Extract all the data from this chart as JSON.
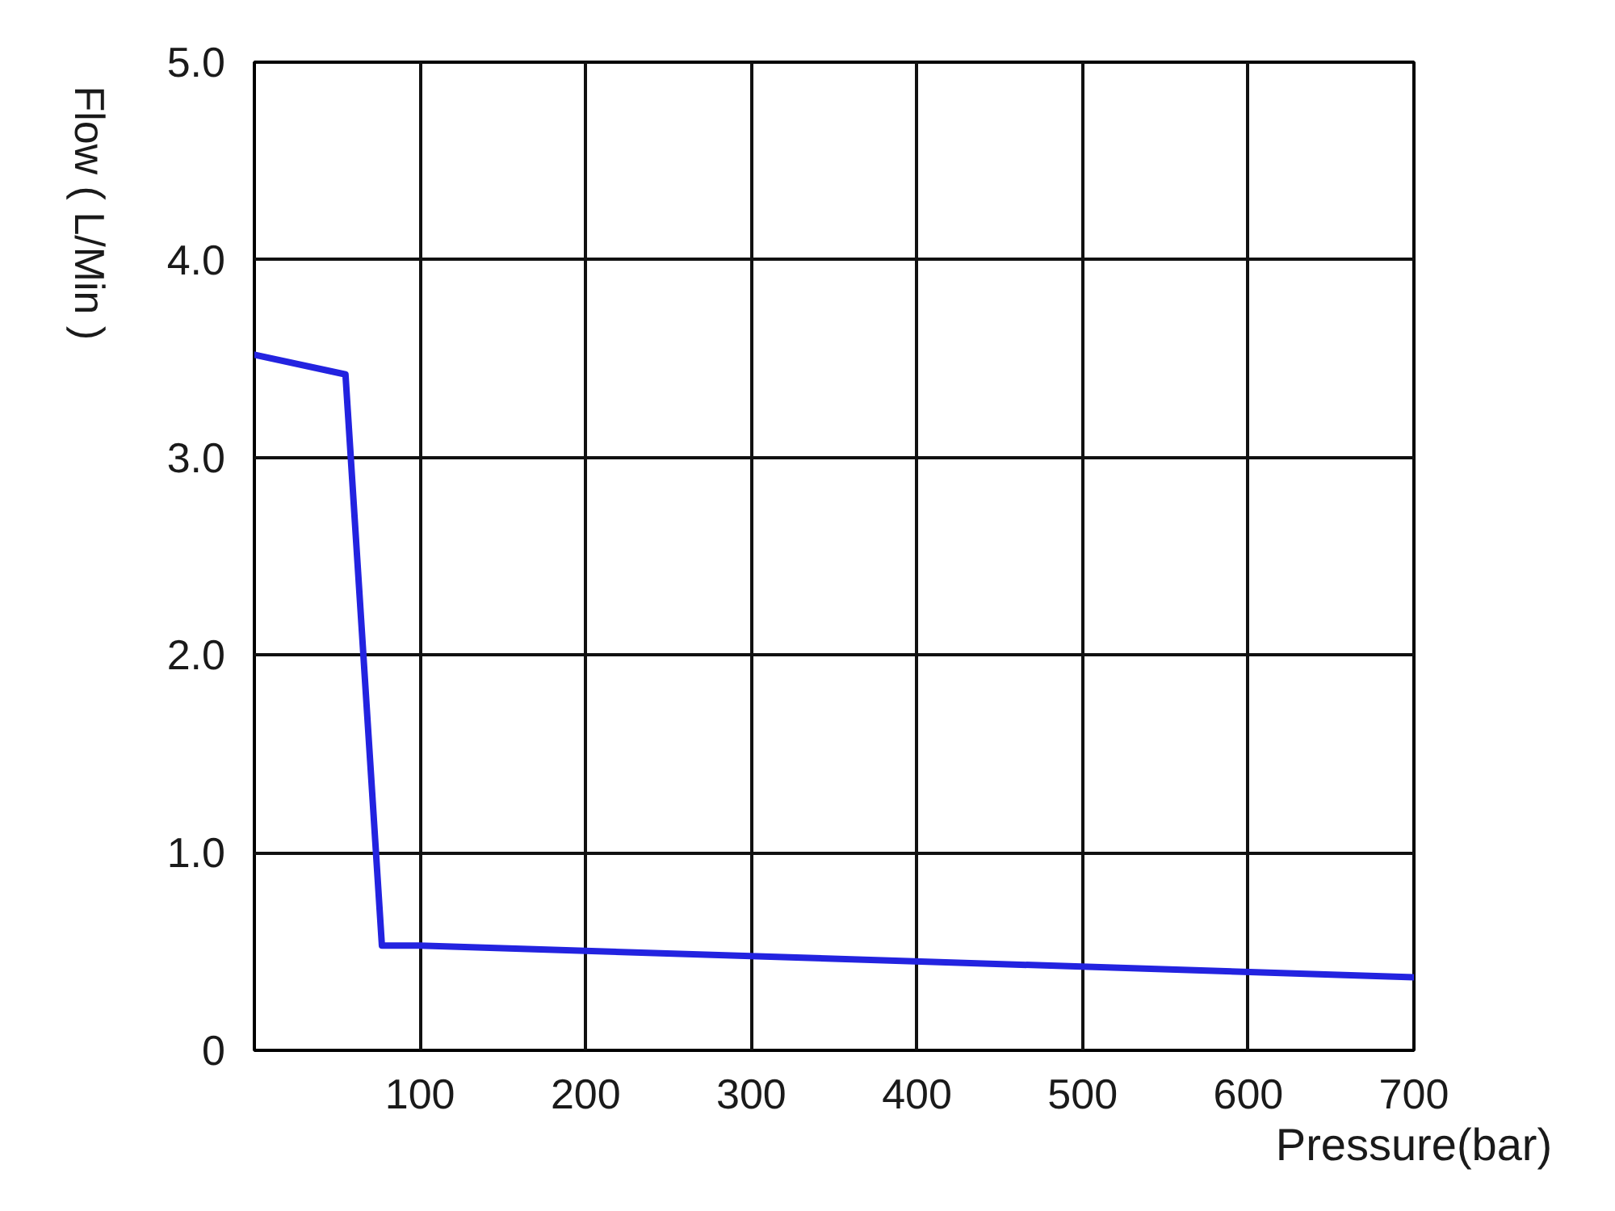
{
  "chart_data": {
    "type": "line",
    "xlabel": "Pressure(bar)",
    "ylabel": "Flow ( L/Min )",
    "x": [
      0,
      55,
      77,
      100,
      700
    ],
    "series": [
      {
        "color": "#2323e0",
        "values": [
          3.52,
          3.42,
          0.53,
          0.53,
          0.37
        ]
      }
    ],
    "xlim": [
      0,
      700
    ],
    "ylim": [
      0,
      5
    ],
    "xticks": [
      100,
      200,
      300,
      400,
      500,
      600,
      700
    ],
    "yticks": [
      {
        "value": 0,
        "label": "0"
      },
      {
        "value": 1,
        "label": "1.0"
      },
      {
        "value": 2,
        "label": "2.0"
      },
      {
        "value": 3,
        "label": "3.0"
      },
      {
        "value": 4,
        "label": "4.0"
      },
      {
        "value": 5,
        "label": "5.0"
      }
    ],
    "grid": true
  }
}
